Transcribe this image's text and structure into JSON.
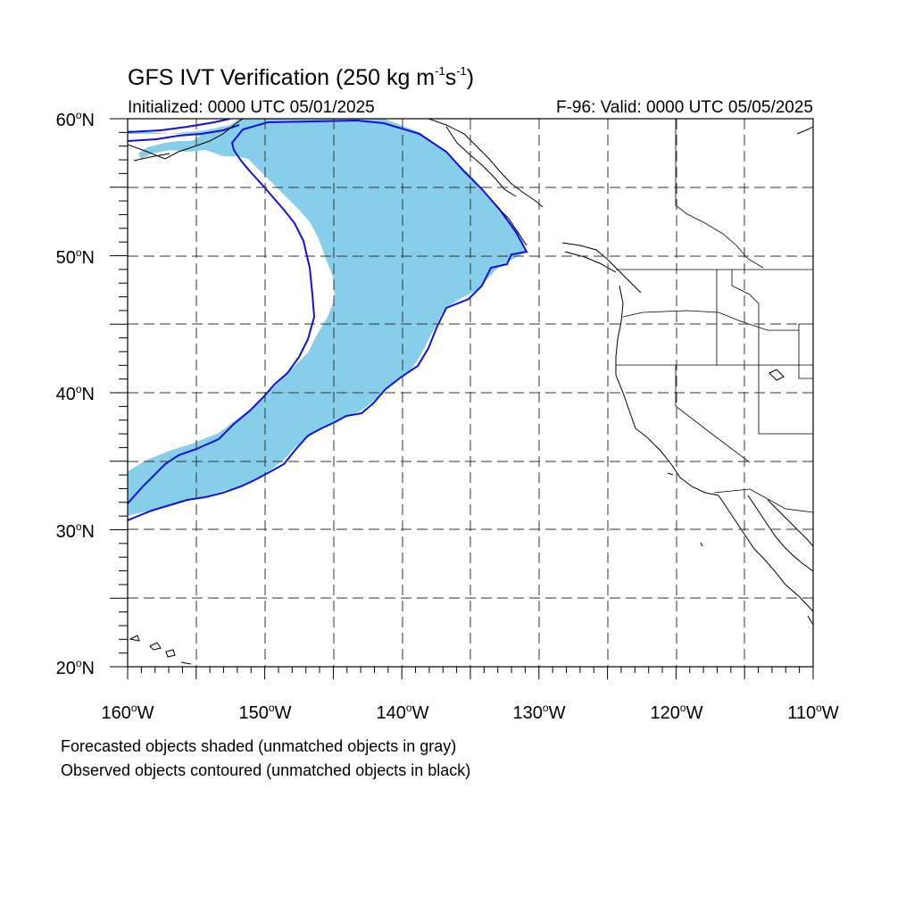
{
  "title": {
    "prefix": "GFS IVT Verification (250 kg m",
    "sup1": "-1",
    "mid": "s",
    "sup2": "-1",
    "suffix": ")"
  },
  "initialized": "Initialized: 0000 UTC 05/01/2025",
  "valid": "F-96: Valid: 0000 UTC 05/05/2025",
  "lat_labels": [
    "60",
    "50",
    "40",
    "30",
    "20"
  ],
  "lat_suffix": "N",
  "lon_labels": [
    "160",
    "150",
    "140",
    "130",
    "120",
    "110"
  ],
  "lon_suffix": "W",
  "degree_symbol": "o",
  "notes": [
    "Forecasted objects shaded (unmatched objects in gray)",
    "Observed objects contoured (unmatched objects in black)"
  ],
  "colors": {
    "forecast_fill": "#87ceeb",
    "observed_contour": "#1111dd",
    "coastline": "#000000",
    "grid": "#333333"
  },
  "map": {
    "projection": "cylindrical-equidistant",
    "lon_range": [
      -160,
      -110
    ],
    "lat_range": [
      20,
      60
    ]
  }
}
